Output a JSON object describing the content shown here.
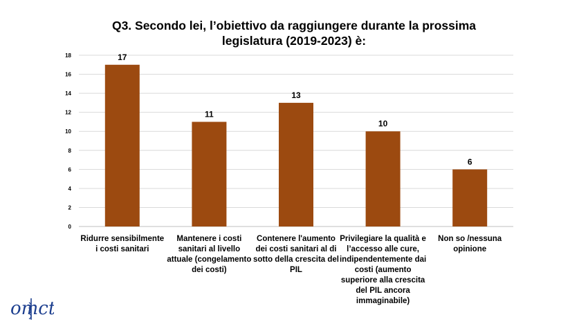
{
  "chart_data": {
    "type": "bar",
    "title_lines": [
      "Q3. Secondo lei, l’obiettivo da raggiungere durante la prossima",
      "legislatura (2019-2023) è:"
    ],
    "categories": [
      "Ridurre sensibilmente i costi sanitari",
      "Mantenere i costi sanitari al livello attuale (congelamento dei costi)",
      "Contenere l'aumento dei costi sanitari al di sotto della crescita del PIL",
      "Privilegiare la qualità e l’accesso alle cure, indipendentemente dai costi (aumento superiore alla crescita del PIL ancora immaginabile)",
      "Non so /nessuna opinione"
    ],
    "values": [
      17,
      11,
      13,
      10,
      6
    ],
    "ylim": [
      0,
      18
    ],
    "yticks": [
      0,
      2,
      4,
      6,
      8,
      10,
      12,
      14,
      16,
      18
    ],
    "grid": true,
    "bar_color": "#9c4a10",
    "grid_color": "#d9d9d9"
  },
  "logo": {
    "text": "omct",
    "color": "#1d3f8f"
  }
}
